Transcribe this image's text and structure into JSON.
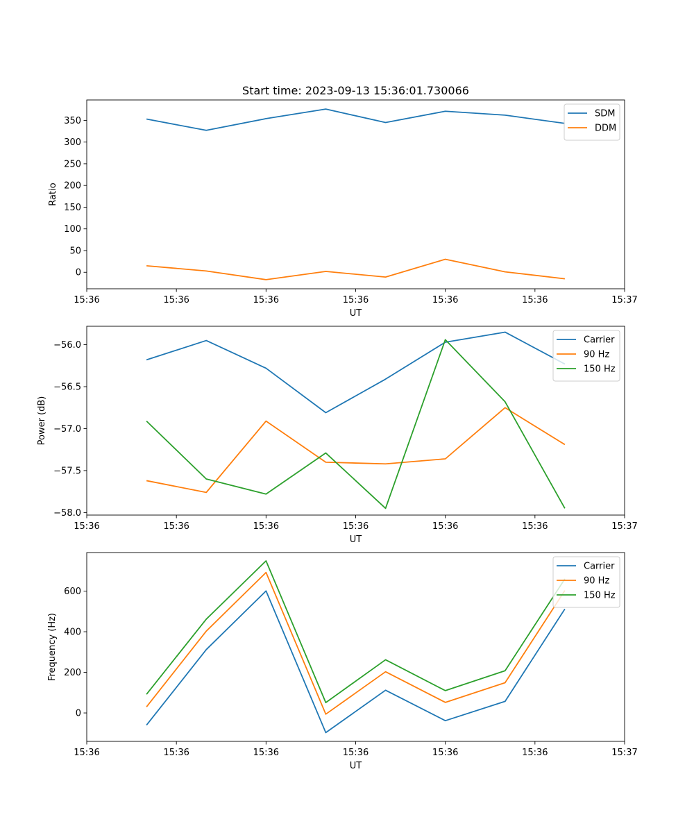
{
  "figure_title": "Start time: 2023-09-13 15:36:01.730066",
  "chart_data": [
    {
      "type": "line",
      "title": "Start time: 2023-09-13 15:36:01.730066",
      "xlabel": "UT",
      "ylabel": "Ratio",
      "x": [
        1,
        2,
        3,
        4,
        5,
        6,
        7,
        8
      ],
      "xlim": [
        0,
        9
      ],
      "x_ticks": [
        0,
        1.5,
        3,
        4.5,
        6,
        7.5,
        9
      ],
      "x_tick_labels": [
        "15:36",
        "15:36",
        "15:36",
        "15:36",
        "15:36",
        "15:36",
        "15:37"
      ],
      "ylim": [
        -38,
        397
      ],
      "y_ticks": [
        0,
        50,
        100,
        150,
        200,
        250,
        300,
        350
      ],
      "y_tick_labels": [
        "0",
        "50",
        "100",
        "150",
        "200",
        "250",
        "300",
        "350"
      ],
      "legend_position": "top-right",
      "series": [
        {
          "name": "SDM",
          "color": "#1f77b4",
          "values": [
            353,
            327,
            354,
            376,
            345,
            371,
            362,
            343
          ]
        },
        {
          "name": "DDM",
          "color": "#ff7f0e",
          "values": [
            15,
            3,
            -17,
            2,
            -11,
            30,
            1,
            -15
          ]
        }
      ]
    },
    {
      "type": "line",
      "title": "",
      "xlabel": "UT",
      "ylabel": "Power (dB)",
      "x": [
        1,
        2,
        3,
        4,
        5,
        6,
        7,
        8
      ],
      "xlim": [
        0,
        9
      ],
      "x_ticks": [
        0,
        1.5,
        3,
        4.5,
        6,
        7.5,
        9
      ],
      "x_tick_labels": [
        "15:36",
        "15:36",
        "15:36",
        "15:36",
        "15:36",
        "15:36",
        "15:37"
      ],
      "ylim": [
        -58.03,
        -55.78
      ],
      "y_ticks": [
        -56.0,
        -56.5,
        -57.0,
        -57.5,
        -58.0
      ],
      "y_tick_labels": [
        "−56.0",
        "−56.5",
        "−57.0",
        "−57.5",
        "−58.0"
      ],
      "legend_position": "top-right",
      "series": [
        {
          "name": "Carrier",
          "color": "#1f77b4",
          "values": [
            -56.18,
            -55.95,
            -56.28,
            -56.81,
            -56.41,
            -55.97,
            -55.85,
            -56.23
          ]
        },
        {
          "name": "90 Hz",
          "color": "#ff7f0e",
          "values": [
            -57.62,
            -57.76,
            -56.91,
            -57.4,
            -57.42,
            -57.36,
            -56.75,
            -57.19
          ]
        },
        {
          "name": "150 Hz",
          "color": "#2ca02c",
          "values": [
            -56.91,
            -57.6,
            -57.78,
            -57.29,
            -57.95,
            -55.94,
            -56.68,
            -57.95
          ]
        }
      ]
    },
    {
      "type": "line",
      "title": "",
      "xlabel": "UT",
      "ylabel": "Frequency (Hz)",
      "x": [
        1,
        2,
        3,
        4,
        5,
        6,
        7,
        8
      ],
      "xlim": [
        0,
        9
      ],
      "x_ticks": [
        0,
        1.5,
        3,
        4.5,
        6,
        7.5,
        9
      ],
      "x_tick_labels": [
        "15:36",
        "15:36",
        "15:36",
        "15:36",
        "15:36",
        "15:36",
        "15:37"
      ],
      "ylim": [
        -140,
        790
      ],
      "y_ticks": [
        0,
        200,
        400,
        600
      ],
      "y_tick_labels": [
        "0",
        "200",
        "400",
        "600"
      ],
      "legend_position": "top-right",
      "series": [
        {
          "name": "Carrier",
          "color": "#1f77b4",
          "values": [
            -60,
            312,
            601,
            -97,
            112,
            -38,
            57,
            512
          ]
        },
        {
          "name": "90 Hz",
          "color": "#ff7f0e",
          "values": [
            30,
            403,
            692,
            -6,
            203,
            52,
            149,
            603
          ]
        },
        {
          "name": "150 Hz",
          "color": "#2ca02c",
          "values": [
            92,
            462,
            749,
            51,
            262,
            110,
            208,
            660
          ]
        }
      ]
    }
  ]
}
